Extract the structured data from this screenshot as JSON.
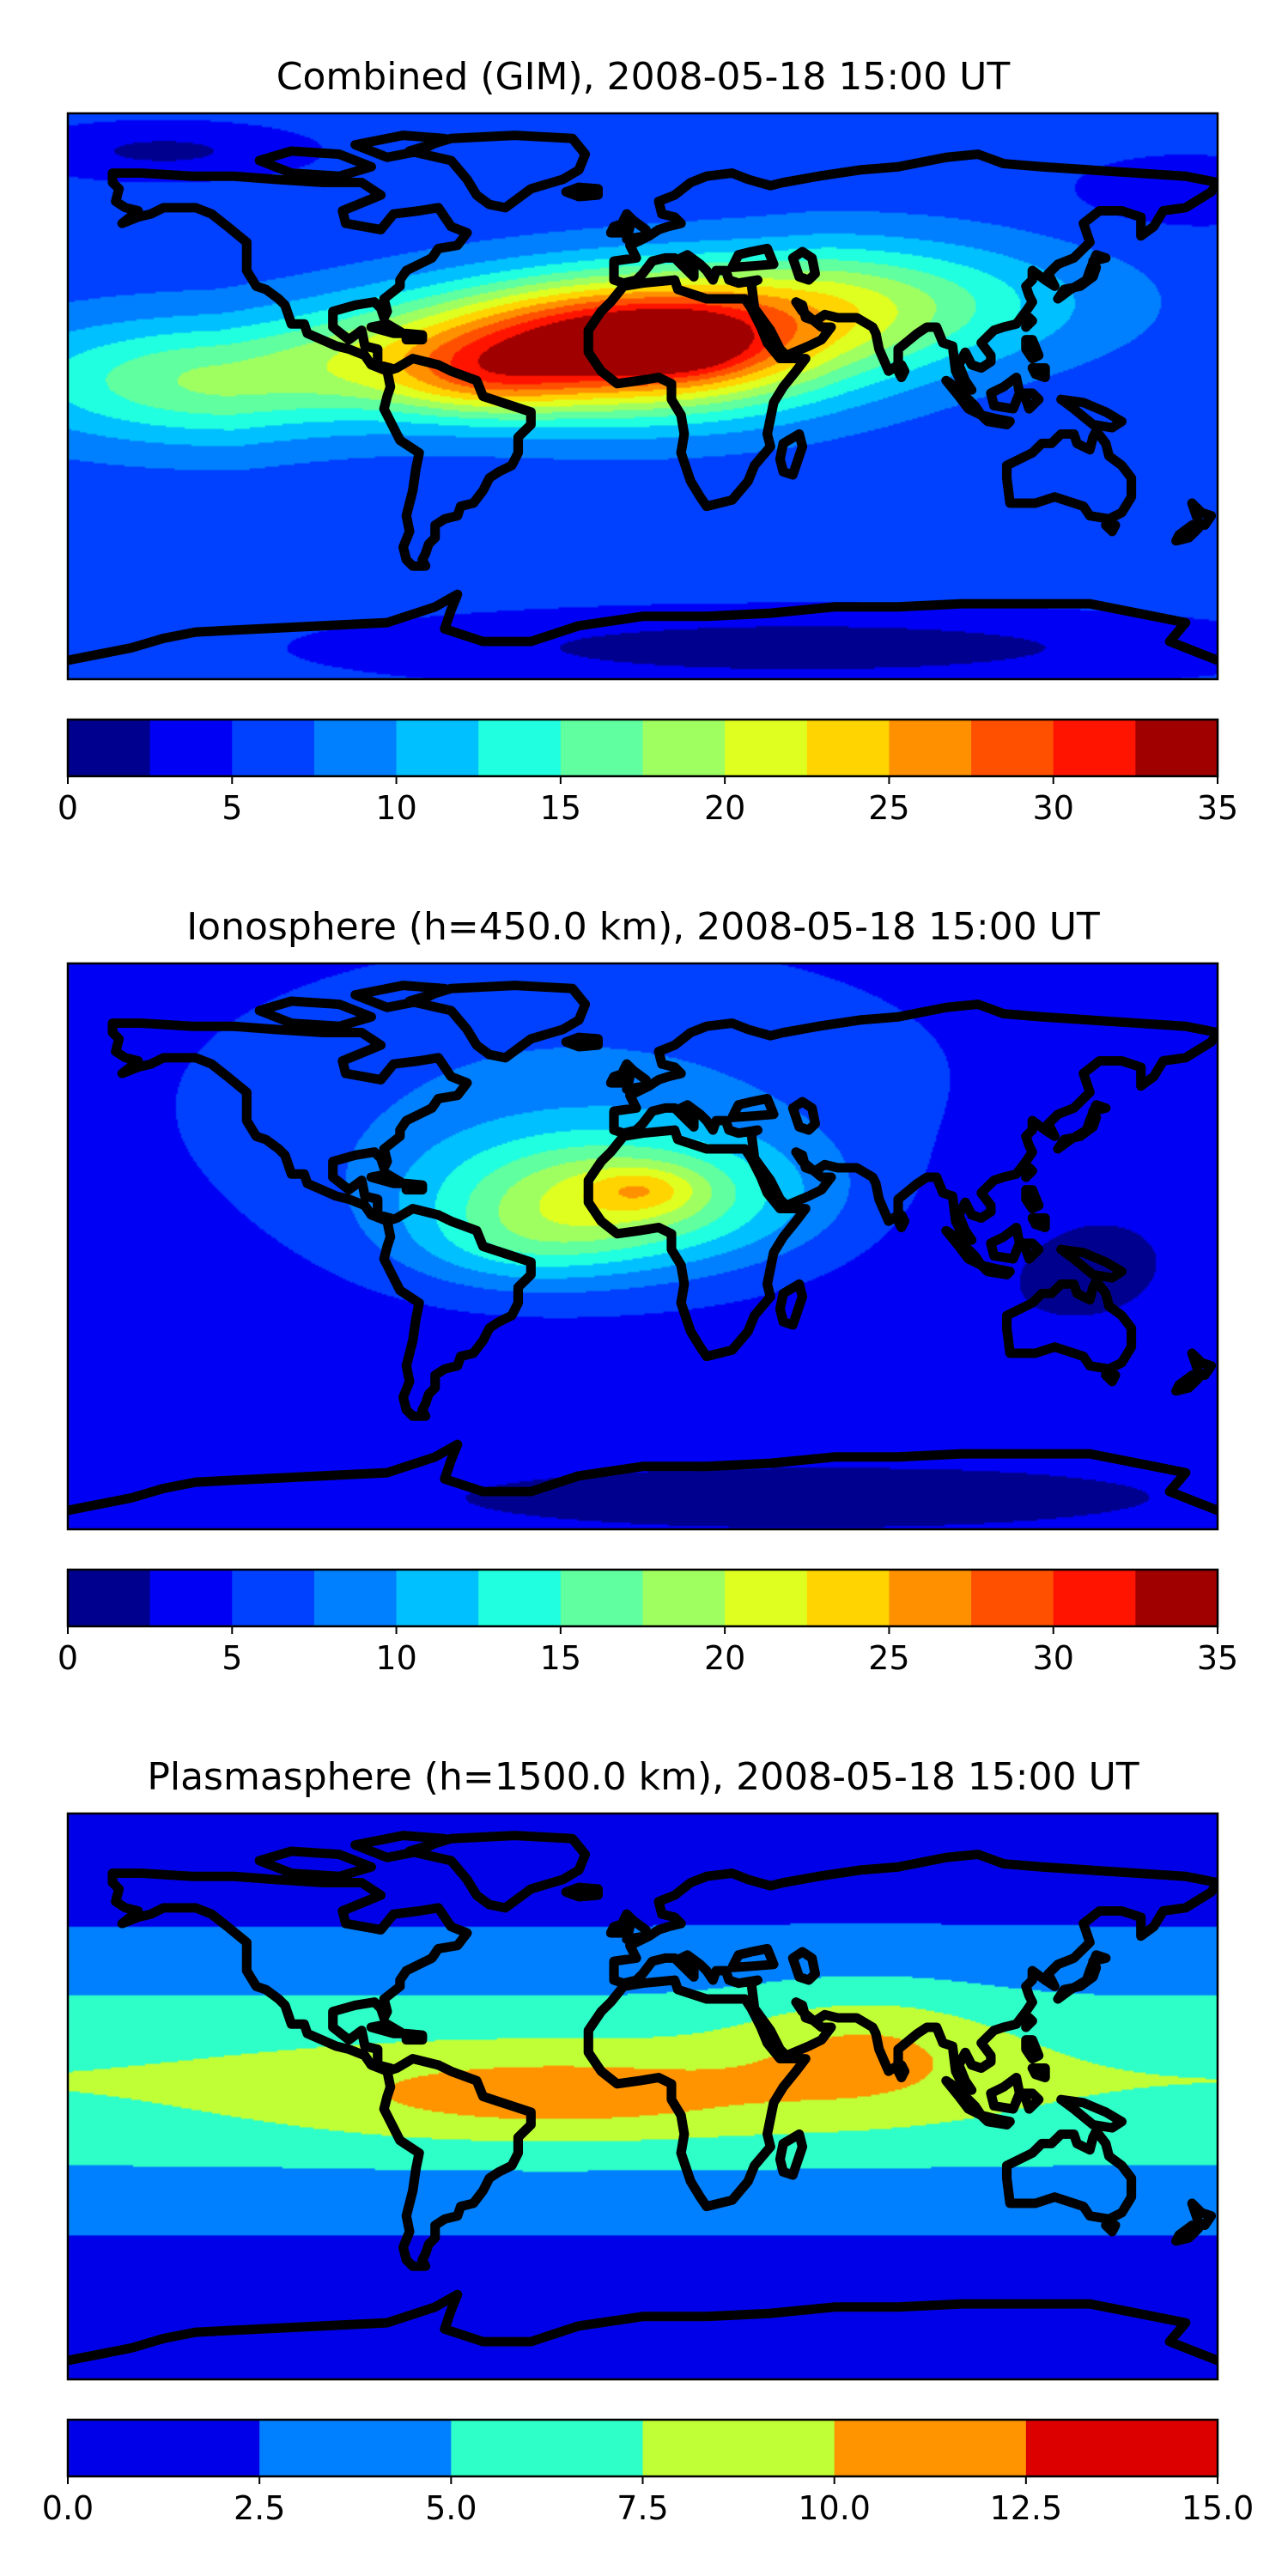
{
  "chart_data": [
    {
      "type": "heatmap",
      "title": "Combined (GIM), 2008-05-18 15:00 UT",
      "projection": "plate-carree",
      "lon_range": [
        -180,
        180
      ],
      "lat_range": [
        -90,
        90
      ],
      "colorbar": {
        "orientation": "horizontal",
        "levels": [
          0,
          2.5,
          5,
          7.5,
          10,
          12.5,
          15,
          17.5,
          20,
          22.5,
          25,
          27.5,
          30,
          32.5,
          35
        ],
        "colors": [
          "#00008f",
          "#0000f5",
          "#0040ff",
          "#0080ff",
          "#00c0ff",
          "#20ffdf",
          "#60ff9f",
          "#a0ff60",
          "#dfff20",
          "#ffd400",
          "#ff9000",
          "#ff5000",
          "#ff1400",
          "#a00000"
        ],
        "ticks": [
          0,
          5,
          10,
          15,
          20,
          25,
          30,
          35
        ],
        "tick_labels": [
          "0",
          "5",
          "10",
          "15",
          "20",
          "25",
          "30",
          "35"
        ]
      },
      "field": {
        "background": 6,
        "features": [
          {
            "kind": "ridge",
            "lon1": -130,
            "lat1": 5,
            "lon2": 60,
            "lat2": 30,
            "amp": 12,
            "sx": 50,
            "sy": 14
          },
          {
            "kind": "blob",
            "lon": 0,
            "lat": 15,
            "amp": 21,
            "sx": 45,
            "sy": 15
          },
          {
            "kind": "blob",
            "lon": -50,
            "lat": 5,
            "amp": 6,
            "sx": 20,
            "sy": 8
          },
          {
            "kind": "blob",
            "lon": 10,
            "lat": 16,
            "amp": 6,
            "sx": 14,
            "sy": 6
          },
          {
            "kind": "blob",
            "lon": 50,
            "lat": -80,
            "amp": -5,
            "sx": 90,
            "sy": 8
          },
          {
            "kind": "blob",
            "lon": -150,
            "lat": 78,
            "amp": -4,
            "sx": 30,
            "sy": 6
          },
          {
            "kind": "blob",
            "lon": 170,
            "lat": 65,
            "amp": -3,
            "sx": 25,
            "sy": 8
          }
        ]
      }
    },
    {
      "type": "heatmap",
      "title": "Ionosphere  (h=450.0 km), 2008-05-18 15:00 UT",
      "projection": "plate-carree",
      "lon_range": [
        -180,
        180
      ],
      "lat_range": [
        -90,
        90
      ],
      "colorbar": {
        "orientation": "horizontal",
        "levels": [
          0,
          2.5,
          5,
          7.5,
          10,
          12.5,
          15,
          17.5,
          20,
          22.5,
          25,
          27.5,
          30,
          32.5,
          35
        ],
        "colors": [
          "#00008f",
          "#0000f5",
          "#0040ff",
          "#0080ff",
          "#00c0ff",
          "#20ffdf",
          "#60ff9f",
          "#a0ff60",
          "#dfff20",
          "#ffd400",
          "#ff9000",
          "#ff5000",
          "#ff1400",
          "#a00000"
        ],
        "ticks": [
          0,
          5,
          10,
          15,
          20,
          25,
          30,
          35
        ],
        "tick_labels": [
          "0",
          "5",
          "10",
          "15",
          "20",
          "25",
          "30",
          "35"
        ]
      },
      "field": {
        "background": 3.5,
        "features": [
          {
            "kind": "blob",
            "lon": -20,
            "lat": 45,
            "amp": 4.5,
            "sx": 85,
            "sy": 35
          },
          {
            "kind": "blob",
            "lon": -10,
            "lat": 15,
            "amp": 14,
            "sx": 40,
            "sy": 15
          },
          {
            "kind": "blob",
            "lon": 0,
            "lat": 18,
            "amp": 5,
            "sx": 12,
            "sy": 5
          },
          {
            "kind": "blob",
            "lon": -40,
            "lat": 0,
            "amp": 4,
            "sx": 25,
            "sy": 10
          },
          {
            "kind": "blob",
            "lon": 130,
            "lat": 0,
            "amp": -1.5,
            "sx": 45,
            "sy": 30
          },
          {
            "kind": "blob",
            "lon": 50,
            "lat": -80,
            "amp": -2,
            "sx": 90,
            "sy": 8
          }
        ]
      }
    },
    {
      "type": "heatmap",
      "title": "Plasmasphere (h=1500.0 km), 2008-05-18 15:00 UT",
      "projection": "plate-carree",
      "lon_range": [
        -180,
        180
      ],
      "lat_range": [
        -90,
        90
      ],
      "colorbar": {
        "orientation": "horizontal",
        "levels": [
          0,
          2.5,
          5,
          7.5,
          10,
          12.5,
          15
        ],
        "colors": [
          "#0000e8",
          "#0080ff",
          "#2effc8",
          "#c0ff36",
          "#ff9300",
          "#dd0000"
        ],
        "ticks": [
          0,
          2.5,
          5,
          7.5,
          10,
          12.5,
          15
        ],
        "tick_labels": [
          "0.0",
          "2.5",
          "5.0",
          "7.5",
          "10.0",
          "12.5",
          "15.0"
        ]
      },
      "field": {
        "background": 1.5,
        "features": [
          {
            "kind": "band",
            "lat": 5,
            "amp": 6,
            "sy": 26
          },
          {
            "kind": "blob",
            "lon": -50,
            "lat": 0,
            "amp": 3,
            "sx": 45,
            "sy": 10
          },
          {
            "kind": "blob",
            "lon": 5,
            "lat": 0,
            "amp": 2,
            "sx": 40,
            "sy": 10
          },
          {
            "kind": "blob",
            "lon": 70,
            "lat": 15,
            "amp": 3.5,
            "sx": 28,
            "sy": 14
          }
        ]
      }
    }
  ]
}
